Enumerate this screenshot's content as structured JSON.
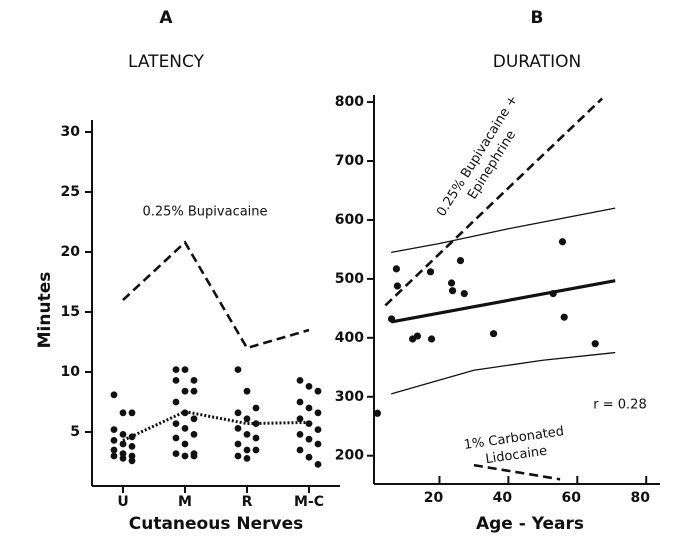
{
  "chart_data": [
    {
      "type": "stripline",
      "title": "A",
      "subtitle": "LATENCY",
      "ylabel": "Minutes",
      "xlabel": "Cutaneous Nerves",
      "categories": [
        "U",
        "M",
        "R",
        "M-C"
      ],
      "ylim": [
        0.5,
        31
      ],
      "yticks": [
        5,
        10,
        15,
        20,
        25,
        30
      ],
      "points": [
        [
          8.1,
          6.6,
          6.6,
          5.2,
          4.8,
          4.6,
          4.3,
          4.0,
          3.8,
          3.5,
          3.2,
          3.0,
          3.0,
          2.8,
          2.6
        ],
        [
          10.2,
          10.2,
          9.3,
          9.3,
          8.4,
          8.4,
          7.5,
          6.6,
          6.1,
          5.7,
          5.3,
          4.8,
          4.5,
          4.0,
          3.2,
          3.2,
          3.0,
          3.0
        ],
        [
          10.2,
          8.4,
          7.0,
          6.6,
          6.1,
          5.7,
          5.3,
          4.8,
          4.5,
          4.0,
          3.5,
          3.5,
          3.0,
          2.8
        ],
        [
          9.3,
          8.8,
          8.4,
          7.5,
          7.0,
          6.6,
          6.1,
          5.7,
          5.2,
          4.8,
          4.4,
          4.0,
          3.5,
          2.9,
          2.3
        ]
      ],
      "series": [
        {
          "name": "0.25% Bupivacaine",
          "style": "dashed",
          "values": [
            16,
            20.8,
            12,
            13.5
          ]
        },
        {
          "style": "dotted",
          "values": [
            4.3,
            6.7,
            5.7,
            5.8
          ]
        }
      ]
    },
    {
      "type": "scatter",
      "title": "B",
      "subtitle": "DURATION",
      "xlabel": "Age - Years",
      "xlim": [
        1,
        84
      ],
      "ylim": [
        152,
        812
      ],
      "xticks": [
        20,
        40,
        60,
        80
      ],
      "yticks": [
        200,
        300,
        400,
        500,
        600,
        700,
        800
      ],
      "x": [
        2,
        6.1,
        7.5,
        7.8,
        12.2,
        13.6,
        17.4,
        17.7,
        23.5,
        23.8,
        26.1,
        27.2,
        35.7,
        53,
        55.7,
        56.2,
        65.2
      ],
      "values": [
        272,
        432,
        517,
        488,
        398,
        403,
        512,
        398,
        493,
        480,
        531,
        475,
        407,
        475,
        563,
        435,
        390
      ],
      "lines": [
        {
          "label": [
            "0.25% Bupivacaine +",
            "Epinephrine"
          ],
          "style": "dashed",
          "x": [
            4.3,
            67.2
          ],
          "values": [
            455,
            806
          ]
        },
        {
          "style": "bold",
          "x": [
            6,
            71
          ],
          "values": [
            427,
            497
          ]
        },
        {
          "style": "thin",
          "x": [
            6,
            20,
            40,
            71
          ],
          "values": [
            545,
            560,
            585,
            620
          ]
        },
        {
          "style": "thin",
          "x": [
            6,
            30,
            50,
            71
          ],
          "values": [
            305,
            345,
            362,
            375
          ]
        },
        {
          "label": [
            "1% Carbonated",
            "Lidocaine"
          ],
          "style": "dashed",
          "x": [
            30,
            55
          ],
          "values": [
            184,
            160
          ]
        }
      ],
      "annotation": "r = 0.28"
    }
  ]
}
